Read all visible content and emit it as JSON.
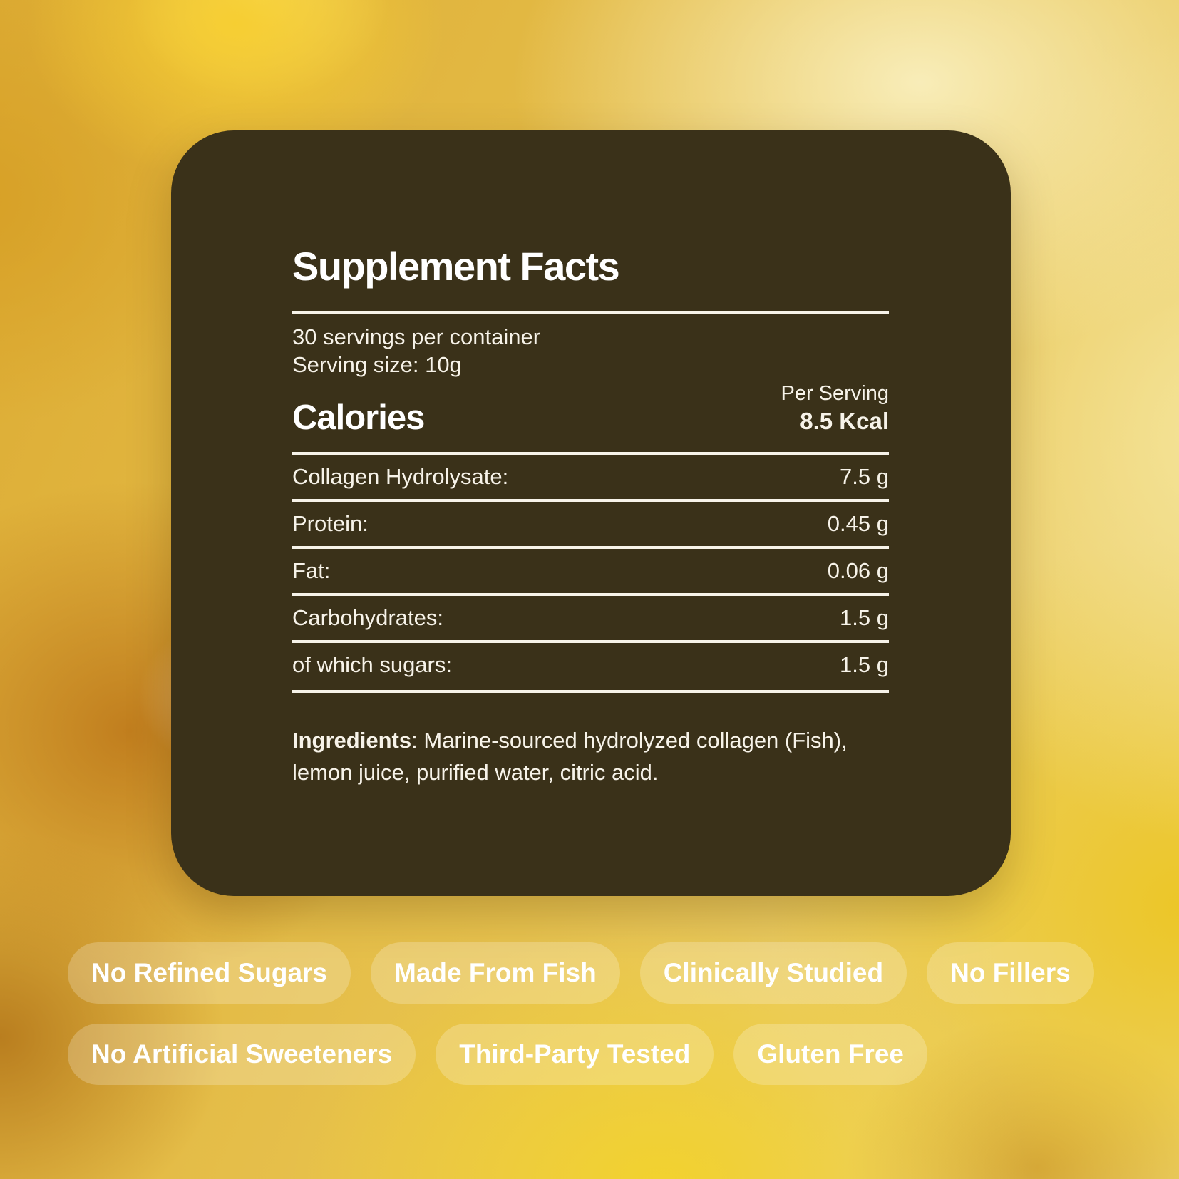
{
  "panel": {
    "title": "Supplement Facts",
    "servings_per_container": "30 servings per container",
    "serving_size": "Serving size: 10g",
    "per_serving_label": "Per Serving",
    "calories_label": "Calories",
    "calories_value": "8.5 Kcal",
    "rows": [
      {
        "label": "Collagen Hydrolysate:",
        "value": "7.5 g"
      },
      {
        "label": "Protein:",
        "value": "0.45 g"
      },
      {
        "label": "Fat:",
        "value": "0.06 g"
      },
      {
        "label": "Carbohydrates:",
        "value": "1.5 g"
      },
      {
        "label": "of which sugars:",
        "value": "1.5 g"
      }
    ],
    "ingredients_label": "Ingredients",
    "ingredients_text": ": Marine-sourced hydrolyzed collagen (Fish), lemon juice, purified water, citric acid."
  },
  "badges": {
    "row1": [
      "No Refined Sugars",
      "Made From Fish",
      "Clinically Studied",
      "No Fillers"
    ],
    "row2": [
      "No Artificial Sweeteners",
      "Third-Party Tested",
      "Gluten Free"
    ]
  },
  "colors": {
    "panel_bg": "#3a3119",
    "panel_text": "#f7f3e9",
    "background_gold": "#e2b43e",
    "badge_bg": "rgba(255,255,255,0.22)",
    "badge_text": "#ffffff"
  }
}
